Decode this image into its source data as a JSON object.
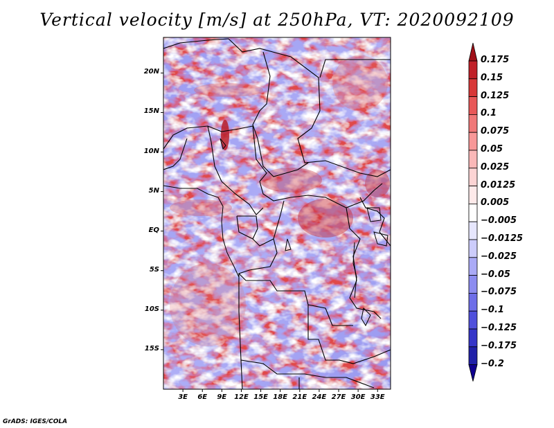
{
  "title": "Vertical velocity [m/s] at 250hPa, VT: 2020092109",
  "footer": "GrADS: IGES/COLA",
  "map": {
    "lat_range": [
      -20,
      24.5
    ],
    "lon_range": [
      0,
      35
    ],
    "lat_ticks": [
      {
        "value": 20,
        "label": "20N"
      },
      {
        "value": 15,
        "label": "15N"
      },
      {
        "value": 10,
        "label": "10N"
      },
      {
        "value": 5,
        "label": "5N"
      },
      {
        "value": 0,
        "label": "EQ"
      },
      {
        "value": -5,
        "label": "5S"
      },
      {
        "value": -10,
        "label": "10S"
      },
      {
        "value": -15,
        "label": "15S"
      }
    ],
    "lon_ticks": [
      {
        "value": 3,
        "label": "3E"
      },
      {
        "value": 6,
        "label": "6E"
      },
      {
        "value": 9,
        "label": "9E"
      },
      {
        "value": 12,
        "label": "12E"
      },
      {
        "value": 15,
        "label": "15E"
      },
      {
        "value": 18,
        "label": "18E"
      },
      {
        "value": 21,
        "label": "21E"
      },
      {
        "value": 24,
        "label": "24E"
      },
      {
        "value": 27,
        "label": "27E"
      },
      {
        "value": 30,
        "label": "30E"
      },
      {
        "value": 33,
        "label": "33E"
      }
    ]
  },
  "colorbar": {
    "labels": [
      "0.175",
      "0.15",
      "0.125",
      "0.1",
      "0.075",
      "0.05",
      "0.025",
      "0.0125",
      "0.005",
      "−0.005",
      "−0.0125",
      "−0.025",
      "−0.05",
      "−0.075",
      "−0.1",
      "−0.125",
      "−0.175",
      "−0.2"
    ],
    "colors": [
      "#a01018",
      "#c02028",
      "#d83838",
      "#e85858",
      "#f07878",
      "#f89898",
      "#fab8b8",
      "#fcd4d4",
      "#feeaea",
      "#ffffff",
      "#e6e6fd",
      "#ccccfb",
      "#aaaaf6",
      "#8c8cf0",
      "#6e6ee8",
      "#5050dc",
      "#3535c8",
      "#2020a8",
      "#100090"
    ]
  }
}
